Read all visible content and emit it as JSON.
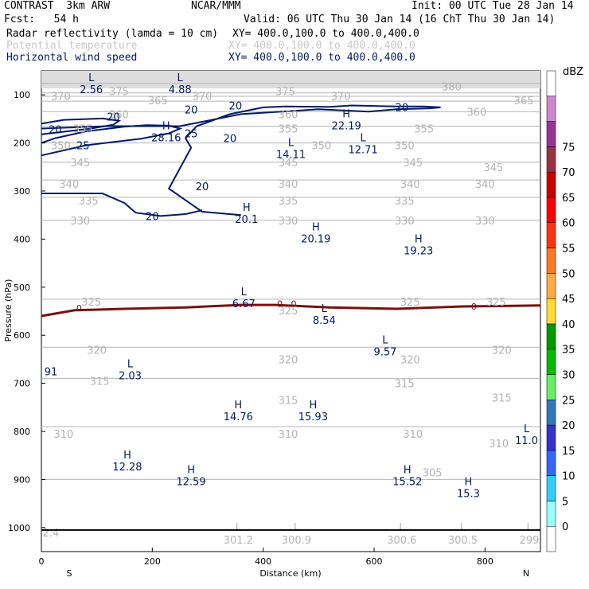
{
  "header": {
    "left_line1": "CONTRAST  3km ARW",
    "center_line1": "NCAR/MMM",
    "right_line1": "Init: 00 UTC Tue 28 Jan 14",
    "left_line2": "Fcst:   54 h",
    "right_line2": "Valid: 06 UTC Thu 30 Jan 14 (16 ChT Thu 30 Jan 14)",
    "field1_name": "Radar reflectivity (lamda = 10 cm)",
    "field1_xy": "XY= 400.0,100.0 to 400.0,400.0",
    "field2_name": "Potential temperature",
    "field2_xy": "XY= 400.0,100.0 to 400.0,400.0",
    "field3_name": "Horizontal wind speed",
    "field3_xy": "XY= 400.0,100.0 to 400.0,400.0"
  },
  "colors": {
    "navy": "#001a66",
    "gray": "#b4b4b4",
    "dark_red": "#7a1010"
  },
  "chart_data": {
    "type": "cross-section",
    "xlabel": "Distance (km)",
    "ylabel": "Pressure (hPa)",
    "xlim": [
      0,
      900
    ],
    "ylim": [
      1050,
      50
    ],
    "x_ticks": [
      0,
      200,
      400,
      600,
      800
    ],
    "y_ticks": [
      100,
      200,
      300,
      400,
      500,
      600,
      700,
      800,
      900,
      1000
    ],
    "x_end_labels": {
      "left": "S",
      "right": "N"
    },
    "theta_contours": [
      {
        "value": 380,
        "x": [
          0,
          900
        ],
        "p": [
          76,
          76
        ]
      },
      {
        "value": 375,
        "x": [
          0,
          900
        ],
        "p": [
          96,
          96
        ]
      },
      {
        "value": 370,
        "x": [
          0,
          900
        ],
        "p": [
          103,
          103
        ]
      },
      {
        "value": 365,
        "x": [
          0,
          900
        ],
        "p": [
          113,
          113
        ]
      },
      {
        "value": 360,
        "x": [
          0,
          900
        ],
        "p": [
          135,
          135
        ]
      },
      {
        "value": 355,
        "x": [
          0,
          900
        ],
        "p": [
          165,
          165
        ]
      },
      {
        "value": 350,
        "x": [
          0,
          900
        ],
        "p": [
          200,
          200
        ]
      },
      {
        "value": 345,
        "x": [
          0,
          900
        ],
        "p": [
          240,
          240
        ]
      },
      {
        "value": 340,
        "x": [
          0,
          900
        ],
        "p": [
          277,
          277
        ]
      },
      {
        "value": 335,
        "x": [
          0,
          900
        ],
        "p": [
          313,
          313
        ]
      },
      {
        "value": 330,
        "x": [
          0,
          900
        ],
        "p": [
          361,
          361
        ]
      },
      {
        "value": 325,
        "x": [
          0,
          900
        ],
        "p": [
          525,
          525
        ]
      },
      {
        "value": 320,
        "x": [
          0,
          900
        ],
        "p": [
          625,
          625
        ]
      },
      {
        "value": 315,
        "x": [
          0,
          900
        ],
        "p": [
          690,
          690
        ]
      },
      {
        "value": 310,
        "x": [
          0,
          900
        ],
        "p": [
          790,
          790
        ]
      },
      {
        "value": 305,
        "x": [
          0,
          900
        ],
        "p": [
          900,
          900
        ]
      }
    ],
    "theta_labels": [
      {
        "text": "380",
        "x": 740,
        "p": 82
      },
      {
        "text": "375",
        "x": 140,
        "p": 92
      },
      {
        "text": "375",
        "x": 440,
        "p": 92
      },
      {
        "text": "370",
        "x": 35,
        "p": 102
      },
      {
        "text": "370",
        "x": 290,
        "p": 102
      },
      {
        "text": "370",
        "x": 540,
        "p": 102
      },
      {
        "text": "365",
        "x": 210,
        "p": 111
      },
      {
        "text": "365",
        "x": 870,
        "p": 111
      },
      {
        "text": "360",
        "x": 140,
        "p": 140
      },
      {
        "text": "360",
        "x": 445,
        "p": 140
      },
      {
        "text": "360",
        "x": 785,
        "p": 135
      },
      {
        "text": "355",
        "x": 75,
        "p": 170
      },
      {
        "text": "355",
        "x": 445,
        "p": 170
      },
      {
        "text": "355",
        "x": 690,
        "p": 170
      },
      {
        "text": "350",
        "x": 35,
        "p": 205
      },
      {
        "text": "350",
        "x": 505,
        "p": 205
      },
      {
        "text": "350",
        "x": 655,
        "p": 205
      },
      {
        "text": "345",
        "x": 70,
        "p": 240
      },
      {
        "text": "345",
        "x": 445,
        "p": 240
      },
      {
        "text": "345",
        "x": 670,
        "p": 240
      },
      {
        "text": "345",
        "x": 815,
        "p": 250
      },
      {
        "text": "340",
        "x": 50,
        "p": 285
      },
      {
        "text": "340",
        "x": 445,
        "p": 285
      },
      {
        "text": "340",
        "x": 665,
        "p": 285
      },
      {
        "text": "340",
        "x": 800,
        "p": 285
      },
      {
        "text": "335",
        "x": 85,
        "p": 320
      },
      {
        "text": "335",
        "x": 445,
        "p": 320
      },
      {
        "text": "335",
        "x": 655,
        "p": 320
      },
      {
        "text": "330",
        "x": 70,
        "p": 361
      },
      {
        "text": "330",
        "x": 445,
        "p": 361
      },
      {
        "text": "330",
        "x": 655,
        "p": 361
      },
      {
        "text": "330",
        "x": 800,
        "p": 361
      },
      {
        "text": "325",
        "x": 90,
        "p": 530
      },
      {
        "text": "325",
        "x": 445,
        "p": 548
      },
      {
        "text": "325",
        "x": 665,
        "p": 530
      },
      {
        "text": "325",
        "x": 820,
        "p": 530
      },
      {
        "text": "320",
        "x": 100,
        "p": 630
      },
      {
        "text": "320",
        "x": 445,
        "p": 650
      },
      {
        "text": "320",
        "x": 665,
        "p": 650
      },
      {
        "text": "320",
        "x": 830,
        "p": 630
      },
      {
        "text": "315",
        "x": 105,
        "p": 695
      },
      {
        "text": "315",
        "x": 445,
        "p": 735
      },
      {
        "text": "315",
        "x": 655,
        "p": 700
      },
      {
        "text": "315",
        "x": 830,
        "p": 730
      },
      {
        "text": "310",
        "x": 40,
        "p": 805
      },
      {
        "text": "310",
        "x": 445,
        "p": 805
      },
      {
        "text": "310",
        "x": 670,
        "p": 805
      },
      {
        "text": "310",
        "x": 825,
        "p": 825
      },
      {
        "text": "305",
        "x": 705,
        "p": 885
      }
    ],
    "wind_contours": [
      {
        "value": 20,
        "x": [
          0,
          120,
          250,
          360,
          500,
          590,
          640,
          700,
          720,
          690,
          640,
          560,
          520,
          440,
          400,
          340,
          280,
          260,
          270,
          230,
          290,
          360
        ],
        "p": [
          170,
          165,
          165,
          140,
          130,
          135,
          130,
          128,
          126,
          124,
          124,
          122,
          125,
          124,
          126,
          140,
          165,
          190,
          210,
          295,
          343,
          350
        ]
      },
      {
        "value": 20,
        "x": [
          0,
          110,
          150,
          170,
          215,
          260,
          290
        ],
        "p": [
          305,
          305,
          325,
          345,
          352,
          348,
          340
        ]
      },
      {
        "value": 20,
        "x": [
          0,
          90,
          130,
          140,
          110,
          40,
          0
        ],
        "p": [
          182,
          170,
          162,
          154,
          149,
          152,
          160
        ]
      },
      {
        "value": 25,
        "x": [
          0,
          80,
          180,
          230,
          250,
          230,
          190,
          150,
          80,
          25,
          0
        ],
        "p": [
          226,
          205,
          191,
          180,
          170,
          164,
          163,
          166,
          176,
          190,
          200
        ]
      }
    ],
    "wind_labels": [
      {
        "text": "20",
        "x": 130,
        "p": 145
      },
      {
        "text": "20",
        "x": 270,
        "p": 130
      },
      {
        "text": "20",
        "x": 350,
        "p": 122
      },
      {
        "text": "20",
        "x": 650,
        "p": 125
      },
      {
        "text": "20",
        "x": 340,
        "p": 190
      },
      {
        "text": "20",
        "x": 290,
        "p": 290
      },
      {
        "text": "20",
        "x": 200,
        "p": 352
      },
      {
        "text": "20",
        "x": 25,
        "p": 172
      },
      {
        "text": "25",
        "x": 75,
        "p": 205
      },
      {
        "text": "25",
        "x": 270,
        "p": 180
      }
    ],
    "hl_markers": [
      {
        "letter": "L",
        "value": "2.56",
        "x": 90,
        "p": 75
      },
      {
        "letter": "L",
        "value": "4.88",
        "x": 250,
        "p": 75
      },
      {
        "letter": "H",
        "value": "22.19",
        "x": 550,
        "p": 150
      },
      {
        "letter": "H",
        "value": "28.16",
        "x": 225,
        "p": 175
      },
      {
        "letter": "L",
        "value": "14.11",
        "x": 450,
        "p": 210
      },
      {
        "letter": "L",
        "value": "12.71",
        "x": 580,
        "p": 200
      },
      {
        "letter": "H",
        "value": "20.1",
        "x": 370,
        "p": 345
      },
      {
        "letter": "H",
        "value": "20.19",
        "x": 495,
        "p": 385
      },
      {
        "letter": "H",
        "value": "19.23",
        "x": 680,
        "p": 410
      },
      {
        "letter": "L",
        "value": "6.67",
        "x": 365,
        "p": 520
      },
      {
        "letter": "L",
        "value": "8.54",
        "x": 510,
        "p": 555
      },
      {
        "letter": "L",
        "value": "9.57",
        "x": 620,
        "p": 620
      },
      {
        "letter": "L",
        "value": "2.03",
        "x": 160,
        "p": 670
      },
      {
        "letter": "H",
        "value": "14.76",
        "x": 355,
        "p": 755
      },
      {
        "letter": "H",
        "value": "15.93",
        "x": 490,
        "p": 755
      },
      {
        "letter": "L",
        "value": "11.0",
        "x": 875,
        "p": 805
      },
      {
        "letter": "H",
        "value": "12.28",
        "x": 155,
        "p": 860
      },
      {
        "letter": "H",
        "value": "12.59",
        "x": 270,
        "p": 890
      },
      {
        "letter": "H",
        "value": "15.52",
        "x": 660,
        "p": 890
      },
      {
        "letter": "H",
        "value": "15.3",
        "x": 770,
        "p": 915
      }
    ],
    "theta_low_markers": [
      {
        "letter": "L",
        "value": "301.2",
        "x": 355,
        "p": 1010
      },
      {
        "letter": "L",
        "value": "300.9",
        "x": 460,
        "p": 1010
      },
      {
        "letter": "L",
        "value": "300.6",
        "x": 650,
        "p": 1010
      },
      {
        "letter": "L",
        "value": "300.5",
        "x": 760,
        "p": 1010
      },
      {
        "letter": "L",
        "value": "299",
        "x": 880,
        "p": 1010
      }
    ],
    "edge_labels": [
      {
        "text": "91",
        "x": 10,
        "p": 675,
        "color": "navy"
      },
      {
        "text": "2.4",
        "x": 12,
        "p": 1010,
        "color": "gray"
      }
    ],
    "zero_contour": {
      "value": 0,
      "x": [
        0,
        60,
        150,
        260,
        360,
        420,
        520,
        640,
        760,
        900
      ],
      "p": [
        560,
        548,
        545,
        542,
        537,
        537,
        542,
        545,
        540,
        538
      ]
    },
    "zero_labels": [
      {
        "text": "0",
        "x": 68,
        "p": 543
      },
      {
        "text": "0",
        "x": 430,
        "p": 534
      },
      {
        "text": "0",
        "x": 455,
        "p": 534
      },
      {
        "text": "0",
        "x": 780,
        "p": 540
      }
    ],
    "colorbar": {
      "unit": "dBZ",
      "levels": [
        0,
        5,
        10,
        15,
        20,
        25,
        30,
        35,
        40,
        45,
        50,
        55,
        60,
        65,
        70,
        75
      ],
      "colors": [
        "#ffffff",
        "#99ffff",
        "#33ccff",
        "#3366ff",
        "#3333cc",
        "#3377bb",
        "#66ee66",
        "#00bb00",
        "#009900",
        "#ffdd33",
        "#ffaa44",
        "#ff7722",
        "#ff3311",
        "#ff0000",
        "#cc0000",
        "#993344",
        "#993399",
        "#cc88cc",
        "#ffffff"
      ]
    }
  }
}
